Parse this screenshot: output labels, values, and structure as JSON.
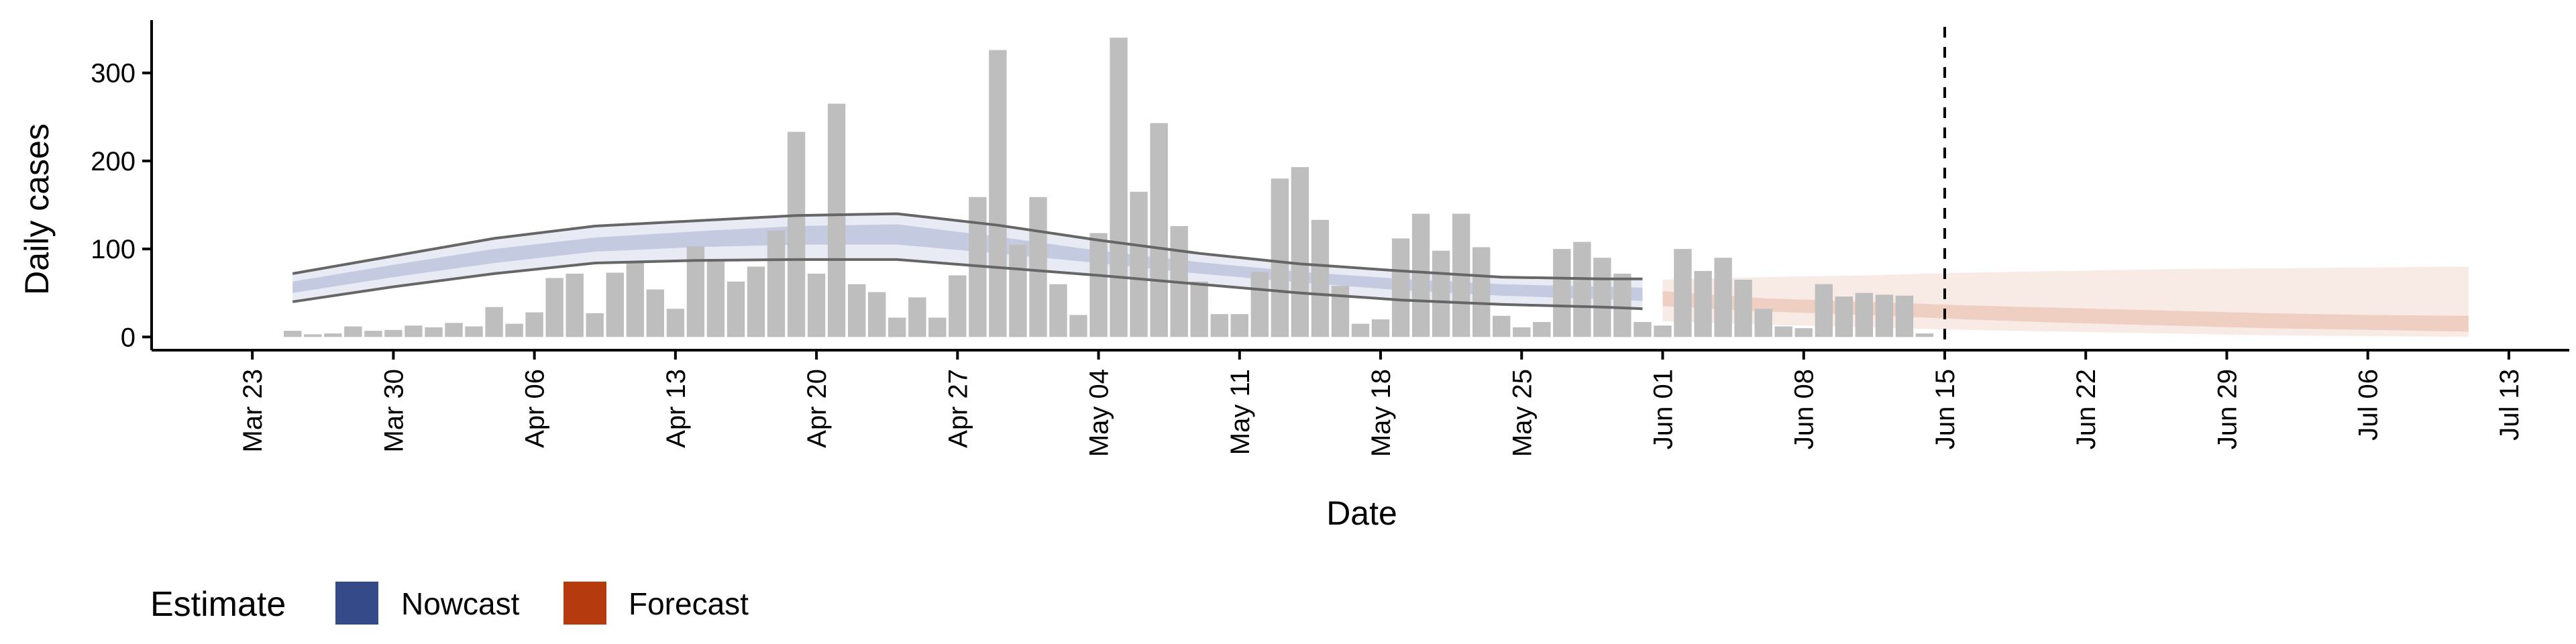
{
  "chart_data": {
    "type": "bar",
    "title": "",
    "xlabel": "Date",
    "ylabel": "Daily cases",
    "x_start_date": "2020-03-25",
    "ylim": [
      -15,
      360
    ],
    "yticks": [
      0,
      100,
      200,
      300
    ],
    "xticks": [
      {
        "date": "2020-03-23",
        "label": "Mar 23"
      },
      {
        "date": "2020-03-30",
        "label": "Mar 30"
      },
      {
        "date": "2020-04-06",
        "label": "Apr 06"
      },
      {
        "date": "2020-04-13",
        "label": "Apr 13"
      },
      {
        "date": "2020-04-20",
        "label": "Apr 20"
      },
      {
        "date": "2020-04-27",
        "label": "Apr 27"
      },
      {
        "date": "2020-05-04",
        "label": "May 04"
      },
      {
        "date": "2020-05-11",
        "label": "May 11"
      },
      {
        "date": "2020-05-18",
        "label": "May 18"
      },
      {
        "date": "2020-05-25",
        "label": "May 25"
      },
      {
        "date": "2020-06-01",
        "label": "Jun 01"
      },
      {
        "date": "2020-06-08",
        "label": "Jun 08"
      },
      {
        "date": "2020-06-15",
        "label": "Jun 15"
      },
      {
        "date": "2020-06-22",
        "label": "Jun 22"
      },
      {
        "date": "2020-06-29",
        "label": "Jun 29"
      },
      {
        "date": "2020-07-06",
        "label": "Jul 06"
      },
      {
        "date": "2020-07-13",
        "label": "Jul 13"
      }
    ],
    "xlim": [
      "2020-03-18",
      "2020-07-16"
    ],
    "vline_date": "2020-06-15",
    "cases": {
      "name": "Daily cases",
      "values": [
        7,
        3,
        4,
        12,
        7,
        8,
        13,
        11,
        16,
        12,
        34,
        15,
        28,
        67,
        72,
        27,
        73,
        85,
        54,
        32,
        103,
        88,
        63,
        80,
        121,
        233,
        72,
        265,
        60,
        51,
        22,
        45,
        22,
        70,
        159,
        326,
        105,
        159,
        60,
        25,
        118,
        340,
        165,
        243,
        126,
        63,
        26,
        26,
        74,
        180,
        193,
        133,
        58,
        15,
        20,
        112,
        140,
        98,
        140,
        102,
        24,
        11,
        17,
        100,
        108,
        90,
        72,
        17,
        13,
        100,
        75,
        90,
        65,
        32,
        12,
        10,
        60,
        46,
        50,
        48,
        47,
        4
      ]
    },
    "nowcast": {
      "name": "Nowcast",
      "dates": [
        "2020-03-25",
        "2020-03-30",
        "2020-04-04",
        "2020-04-09",
        "2020-04-14",
        "2020-04-19",
        "2020-04-24",
        "2020-04-29",
        "2020-05-04",
        "2020-05-09",
        "2020-05-14",
        "2020-05-19",
        "2020-05-24",
        "2020-05-29",
        "2020-05-31"
      ],
      "lower90": [
        40,
        57,
        72,
        84,
        87,
        88,
        88,
        79,
        70,
        60,
        50,
        42,
        37,
        34,
        32
      ],
      "upper90": [
        72,
        92,
        112,
        126,
        132,
        138,
        140,
        127,
        110,
        95,
        83,
        75,
        68,
        66,
        66
      ],
      "lower50": [
        50,
        68,
        84,
        97,
        102,
        105,
        105,
        95,
        84,
        72,
        62,
        53,
        47,
        43,
        41
      ],
      "upper50": [
        63,
        82,
        100,
        113,
        120,
        126,
        128,
        114,
        98,
        85,
        74,
        66,
        60,
        57,
        56
      ]
    },
    "forecast": {
      "name": "Forecast",
      "dates": [
        "2020-06-01",
        "2020-06-06",
        "2020-06-11",
        "2020-06-16",
        "2020-06-21",
        "2020-06-26",
        "2020-07-01",
        "2020-07-06",
        "2020-07-11"
      ],
      "lower90": [
        18,
        14,
        11,
        8,
        6,
        4,
        2,
        1,
        0
      ],
      "upper90": [
        65,
        68,
        70,
        73,
        75,
        77,
        78,
        79,
        80
      ],
      "lower50": [
        35,
        29,
        25,
        20,
        16,
        13,
        10,
        8,
        6
      ],
      "upper50": [
        52,
        44,
        40,
        36,
        33,
        30,
        27,
        25,
        24
      ]
    },
    "colors": {
      "bars": "#bebebe",
      "nowcast": "#3a4f8c",
      "nowcast_outer": "#e8ebf4",
      "nowcast_inner": "#c4cbe1",
      "forecast": "#b8401a",
      "forecast_outer": "#f8eae5",
      "forecast_inner": "#f0cfc3",
      "bounds": "#666666"
    },
    "legend": {
      "title": "Estimate",
      "position": "bottom-left",
      "entries": [
        {
          "label": "Nowcast",
          "color": "#344a89"
        },
        {
          "label": "Forecast",
          "color": "#b53a0e"
        }
      ]
    },
    "grid": false
  }
}
